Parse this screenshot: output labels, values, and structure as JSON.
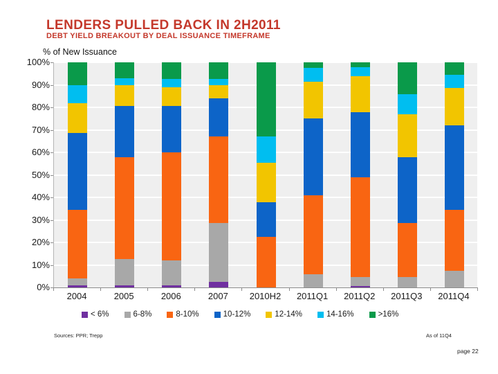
{
  "header": {
    "title": "LENDERS PULLED BACK IN 2H2011",
    "subtitle": "DEBT YIELD BREAKOUT BY DEAL ISSUANCE TIMEFRAME"
  },
  "chart_data": {
    "type": "bar",
    "variant": "stacked-100-percent",
    "title": "% of New Issuance",
    "xlabel": "",
    "ylabel": "% of New Issuance",
    "ylim": [
      0,
      100
    ],
    "grid": true,
    "legend_position": "bottom",
    "y_tick_labels": [
      "0%",
      "10%",
      "20%",
      "30%",
      "40%",
      "50%",
      "60%",
      "70%",
      "80%",
      "90%",
      "100%"
    ],
    "categories": [
      "2004",
      "2005",
      "2006",
      "2007",
      "2010H2",
      "2011Q1",
      "2011Q2",
      "2011Q3",
      "2011Q4"
    ],
    "series": [
      {
        "name": "< 6%",
        "color": "#7030a0",
        "values": [
          1,
          1,
          1,
          2.5,
          0,
          0,
          0.5,
          0,
          0
        ]
      },
      {
        "name": "6-8%",
        "color": "#a8a8a8",
        "values": [
          3,
          11.5,
          11,
          26,
          0,
          6,
          4,
          4.5,
          7.5
        ]
      },
      {
        "name": "8-10%",
        "color": "#f96512",
        "values": [
          30.5,
          45.5,
          48,
          38.5,
          22.5,
          35,
          44.5,
          24,
          27
        ]
      },
      {
        "name": "10-12%",
        "color": "#0d64c8",
        "values": [
          34,
          22.5,
          20.5,
          17,
          15.5,
          34,
          29,
          29.5,
          37.5
        ]
      },
      {
        "name": "12-14%",
        "color": "#f2c500",
        "values": [
          13.5,
          9.5,
          8.5,
          6,
          17.5,
          16.5,
          16,
          19,
          16.5
        ]
      },
      {
        "name": "14-16%",
        "color": "#00bef0",
        "values": [
          8,
          3,
          3.5,
          2.5,
          11.5,
          6,
          4,
          9,
          6
        ]
      },
      {
        "name": ">16%",
        "color": "#0a9a4a",
        "values": [
          10,
          7,
          7.5,
          7.5,
          33,
          2.5,
          2,
          14,
          5.5
        ]
      }
    ]
  },
  "footer": {
    "sources": "Sources: PPR; Trepp",
    "as_of": "As of 11Q4",
    "page": "page 22"
  },
  "colors": {
    "title_red": "#c4382b",
    "plot_background": "#efefef",
    "gridline": "#ffffff",
    "axis_line": "#8c8c8c",
    "text": "#1a1a1a"
  }
}
